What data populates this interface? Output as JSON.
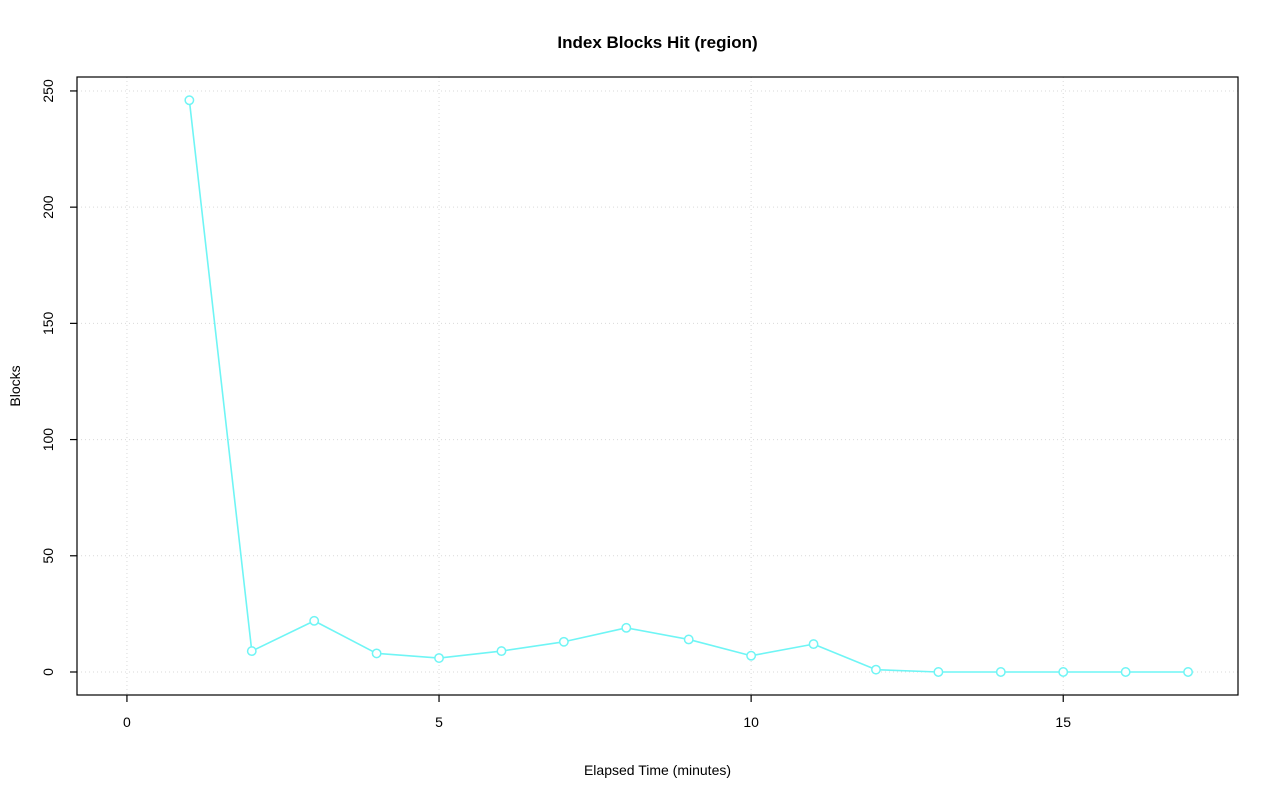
{
  "chart_data": {
    "type": "line",
    "title": "Index Blocks Hit (region)",
    "xlabel": "Elapsed Time (minutes)",
    "ylabel": "Blocks",
    "x": [
      1,
      2,
      3,
      4,
      5,
      6,
      7,
      8,
      9,
      10,
      11,
      12,
      13,
      14,
      15,
      16,
      17
    ],
    "values": [
      246,
      9,
      22,
      8,
      6,
      9,
      13,
      19,
      14,
      7,
      12,
      1,
      0,
      0,
      0,
      0,
      0
    ],
    "series_name": "region",
    "x_ticks": [
      0,
      5,
      10,
      15
    ],
    "y_ticks": [
      0,
      50,
      100,
      150,
      200,
      250
    ],
    "xlim": [
      -0.8,
      17.8
    ],
    "ylim": [
      -9.9,
      256
    ],
    "grid": true,
    "legend_position": "none",
    "marker": "open-circle",
    "colors": {
      "line": "#6ff5f5",
      "marker": "#6ff5f5",
      "grid": "#d9d9d9",
      "axis": "#000000",
      "background": "#ffffff"
    }
  }
}
